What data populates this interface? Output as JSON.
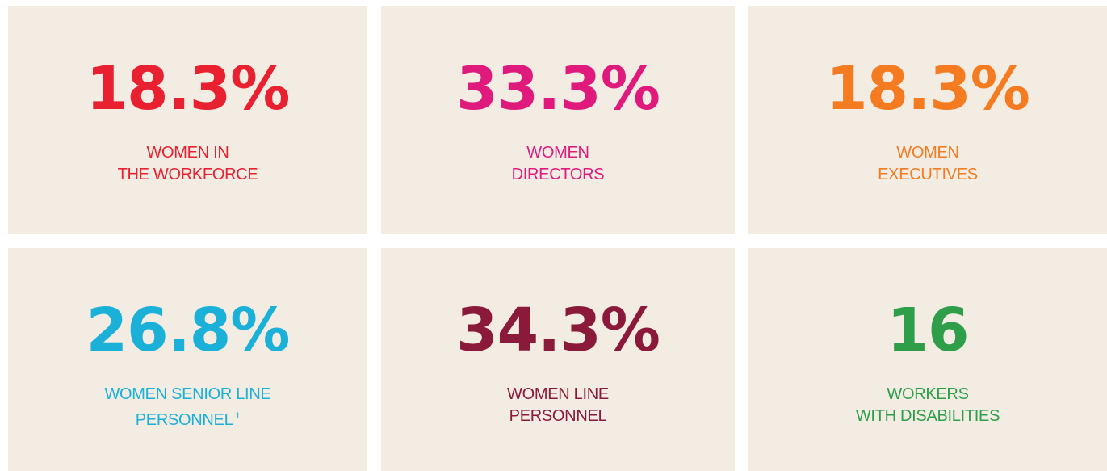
{
  "cards": [
    {
      "value": "18.3%",
      "label": [
        "WOMEN IN",
        "THE WORKFORCE"
      ],
      "color": "#e8202f"
    },
    {
      "value": "33.3%",
      "label": [
        "WOMEN",
        "DIRECTORS"
      ],
      "color": "#e0197d"
    },
    {
      "value": "18.3%",
      "label": [
        "WOMEN",
        "EXECUTIVES"
      ],
      "color": "#f47b20"
    },
    {
      "value": "26.8%",
      "label": [
        "WOMEN SENIOR LINE",
        "PERSONNEL"
      ],
      "footnote": "1",
      "color": "#1ab0d8"
    },
    {
      "value": "34.3%",
      "label": [
        "WOMEN LINE",
        "PERSONNEL"
      ],
      "color": "#8b1a3a"
    },
    {
      "value": "16",
      "label": [
        "WORKERS",
        "WITH DISABILITIES"
      ],
      "color": "#2e9e48"
    }
  ]
}
